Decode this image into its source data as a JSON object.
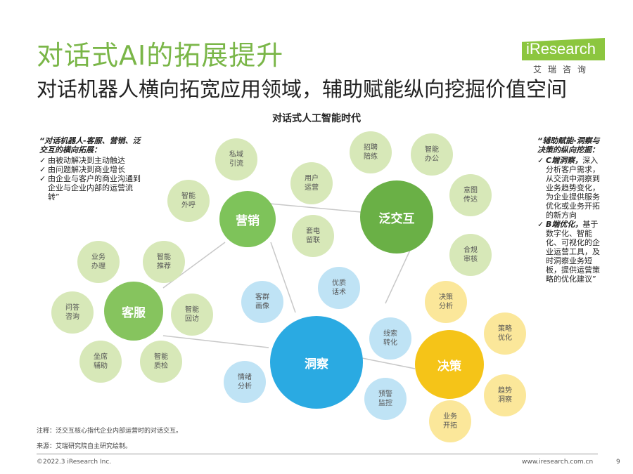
{
  "header": {
    "title": "对话式AI的拓展提升",
    "subtitle": "对话机器人横向拓宽应用领域，辅助赋能纵向挖掘价值空间",
    "logo_text": "iResearch",
    "logo_cn": "艾瑞咨询"
  },
  "diagram": {
    "title": "对话式人工智能时代",
    "hubs": {
      "marketing": "营销",
      "interaction": "泛交互",
      "service": "客服",
      "insight": "洞察",
      "decision": "决策"
    },
    "nodes": {
      "private_traffic": "私域\n引流",
      "smart_outbound": "智能\n外呼",
      "user_ops": "用户\n运营",
      "telemarketing": "套电\n留联",
      "recruit": "招聘\n陪练",
      "smart_office": "智能\n办公",
      "intent": "意图\n传达",
      "compliance": "合规\n审核",
      "business": "业务\n办理",
      "recommend": "智能\n推荐",
      "qa": "问答\n咨询",
      "revisit": "智能\n回访",
      "agent_assist": "坐席\n辅助",
      "quality": "智能\n质检",
      "optimize_script": "优质\n话术",
      "customer_profile": "客群\n画像",
      "lead_convert": "线索\n转化",
      "emotion": "情绪\n分析",
      "warning": "预警\n监控",
      "decision_analysis": "决策\n分析",
      "strategy": "策略\n优化",
      "trend": "趋势\n洞察",
      "biz_expand": "业务\n开拓"
    },
    "colors": {
      "marketing_hub": "#7ec35a",
      "interaction_hub": "#6ab046",
      "service_hub": "#86c45e",
      "insight_hub": "#2aaae2",
      "decision_hub": "#f5c418"
    }
  },
  "left_panel": {
    "head": "“对话机器人-客服、营销、泛交互的横向拓展：",
    "items": [
      "由被动解决到主动触达",
      "由问题解决到商业增长",
      "由企业与客户的商业沟通到企业与企业内部的运营流转”"
    ],
    "check": "✓"
  },
  "right_panel": {
    "head": "“辅助赋能-洞察与决策的纵向挖掘：",
    "item1_bold": "C端洞察，",
    "item1_text": "深入分析客户需求，从交流中洞察到业务趋势变化，为企业提供服务优化或业务开拓的新方向",
    "item2_bold": "B端优化，",
    "item2_text": "基于数字化、智能化、可视化的企业运营工具，及时洞察业务短板，提供运营策略的优化建议”",
    "check": "✓"
  },
  "notes": {
    "note": "注释：泛交互核心指代企业内部运营时的对话交互。",
    "source": "来源：艾瑞研究院自主研究绘制。"
  },
  "footer": {
    "copyright": "©2022.3 iResearch Inc.",
    "url": "www.iresearch.com.cn",
    "page": "9"
  }
}
